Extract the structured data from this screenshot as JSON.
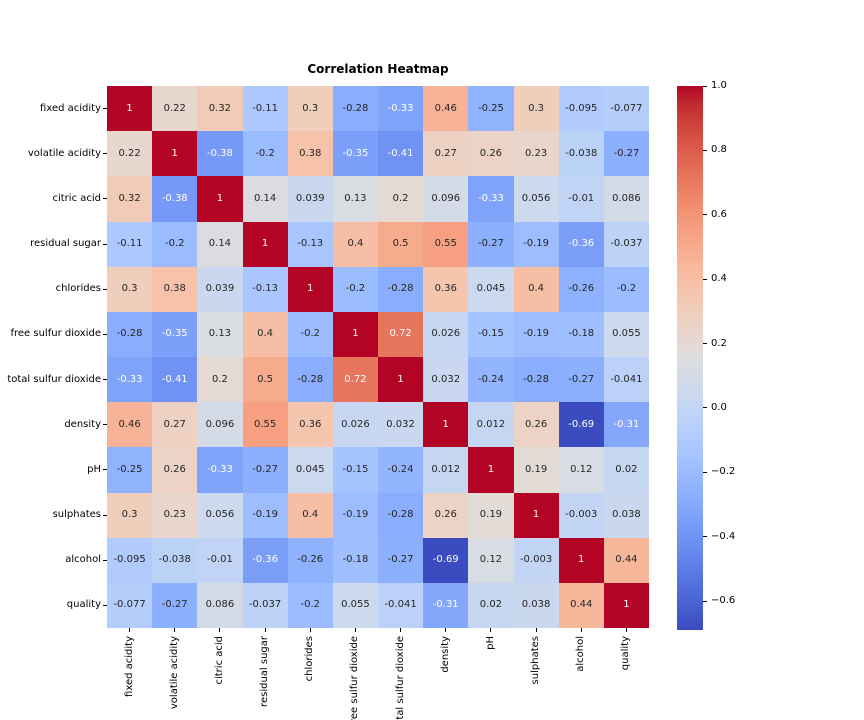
{
  "figure": {
    "background": "#ffffff"
  },
  "chart_data": {
    "type": "heatmap",
    "title": "Correlation Heatmap",
    "labels": [
      "fixed acidity",
      "volatile acidity",
      "citric acid",
      "residual sugar",
      "chlorides",
      "free sulfur dioxide",
      "total sulfur dioxide",
      "density",
      "pH",
      "sulphates",
      "alcohol",
      "quality"
    ],
    "matrix": [
      [
        1,
        0.22,
        0.32,
        -0.11,
        0.3,
        -0.28,
        -0.33,
        0.46,
        -0.25,
        0.3,
        -0.095,
        -0.077
      ],
      [
        0.22,
        1,
        -0.38,
        -0.2,
        0.38,
        -0.35,
        -0.41,
        0.27,
        0.26,
        0.23,
        -0.038,
        -0.27
      ],
      [
        0.32,
        -0.38,
        1,
        0.14,
        0.039,
        0.13,
        0.2,
        0.096,
        -0.33,
        0.056,
        -0.01,
        0.086
      ],
      [
        -0.11,
        -0.2,
        0.14,
        1,
        -0.13,
        0.4,
        0.5,
        0.55,
        -0.27,
        -0.19,
        -0.36,
        -0.037
      ],
      [
        0.3,
        0.38,
        0.039,
        -0.13,
        1,
        -0.2,
        -0.28,
        0.36,
        0.045,
        0.4,
        -0.26,
        -0.2
      ],
      [
        -0.28,
        -0.35,
        0.13,
        0.4,
        -0.2,
        1,
        0.72,
        0.026,
        -0.15,
        -0.19,
        -0.18,
        0.055
      ],
      [
        -0.33,
        -0.41,
        0.2,
        0.5,
        -0.28,
        0.72,
        1,
        0.032,
        -0.24,
        -0.28,
        -0.27,
        -0.041
      ],
      [
        0.46,
        0.27,
        0.096,
        0.55,
        0.36,
        0.026,
        0.032,
        1,
        0.012,
        0.26,
        -0.69,
        -0.31
      ],
      [
        -0.25,
        0.26,
        -0.33,
        -0.27,
        0.045,
        -0.15,
        -0.24,
        0.012,
        1,
        0.19,
        0.12,
        0.02
      ],
      [
        0.3,
        0.23,
        0.056,
        -0.19,
        0.4,
        -0.19,
        -0.28,
        0.26,
        0.19,
        1,
        -0.003,
        0.038
      ],
      [
        -0.095,
        -0.038,
        -0.01,
        -0.36,
        -0.26,
        -0.18,
        -0.27,
        -0.69,
        0.12,
        -0.003,
        1,
        0.44
      ],
      [
        -0.077,
        -0.27,
        0.086,
        -0.037,
        -0.2,
        0.055,
        -0.041,
        -0.31,
        0.02,
        0.038,
        0.44,
        1
      ]
    ],
    "vmin": -0.69,
    "vmax": 1.0,
    "colormap": "coolwarm",
    "colormap_colors": [
      [
        59,
        76,
        192
      ],
      [
        68,
        90,
        204
      ],
      [
        77,
        104,
        215
      ],
      [
        87,
        117,
        225
      ],
      [
        98,
        130,
        234
      ],
      [
        108,
        142,
        241
      ],
      [
        119,
        154,
        247
      ],
      [
        130,
        165,
        251
      ],
      [
        141,
        176,
        254
      ],
      [
        152,
        185,
        255
      ],
      [
        163,
        194,
        255
      ],
      [
        174,
        201,
        253
      ],
      [
        184,
        208,
        249
      ],
      [
        194,
        213,
        244
      ],
      [
        204,
        217,
        238
      ],
      [
        213,
        219,
        230
      ],
      [
        221,
        221,
        221
      ],
      [
        229,
        216,
        209
      ],
      [
        236,
        211,
        197
      ],
      [
        241,
        204,
        185
      ],
      [
        245,
        196,
        173
      ],
      [
        247,
        187,
        160
      ],
      [
        247,
        177,
        148
      ],
      [
        247,
        166,
        135
      ],
      [
        244,
        154,
        123
      ],
      [
        241,
        141,
        111
      ],
      [
        236,
        127,
        99
      ],
      [
        229,
        112,
        88
      ],
      [
        222,
        96,
        77
      ],
      [
        213,
        80,
        66
      ],
      [
        203,
        62,
        56
      ],
      [
        192,
        40,
        47
      ],
      [
        180,
        4,
        38
      ]
    ],
    "colorbar_ticks": [
      {
        "v": 1.0,
        "label": "1.0"
      },
      {
        "v": 0.8,
        "label": "0.8"
      },
      {
        "v": 0.6,
        "label": "0.6"
      },
      {
        "v": 0.4,
        "label": "0.4"
      },
      {
        "v": 0.2,
        "label": "0.2"
      },
      {
        "v": 0.0,
        "label": "0.0"
      },
      {
        "v": -0.2,
        "label": "−0.2"
      },
      {
        "v": -0.4,
        "label": "−0.4"
      },
      {
        "v": -0.6,
        "label": "−0.6"
      }
    ],
    "annotations_shown": true,
    "legend_position": "right-colorbar",
    "grid": false
  },
  "text_colors": {
    "dark": "#262626",
    "light": "#ffffff",
    "axis": "#000000"
  }
}
